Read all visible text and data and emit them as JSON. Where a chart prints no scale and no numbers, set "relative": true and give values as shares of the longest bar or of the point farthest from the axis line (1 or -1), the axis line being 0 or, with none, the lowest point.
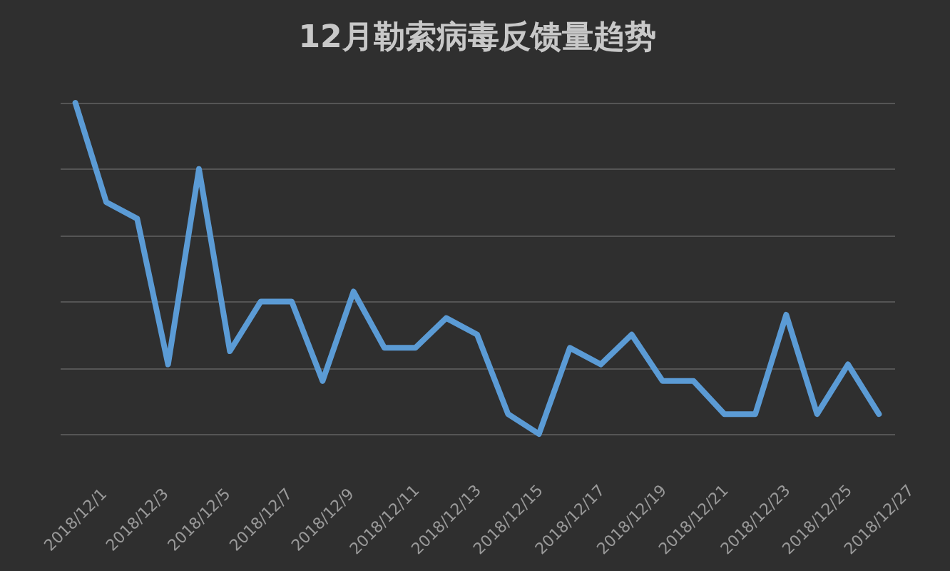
{
  "chart_data": {
    "type": "line",
    "title": "12月勒索病毒反馈量趋势",
    "relative": true,
    "grid": "y",
    "marker": "none",
    "line_style": "solid",
    "categories": [
      "2018/12/1",
      null,
      "2018/12/3",
      null,
      "2018/12/5",
      null,
      "2018/12/7",
      null,
      "2018/12/9",
      null,
      "2018/12/11",
      null,
      "2018/12/13",
      null,
      "2018/12/15",
      null,
      "2018/12/17",
      null,
      "2018/12/19",
      null,
      "2018/12/21",
      null,
      "2018/12/23",
      null,
      "2018/12/25",
      null,
      "2018/12/27"
    ],
    "series": [
      {
        "color": "#5b9bd5",
        "values": [
          1,
          0.7,
          0.65,
          0.21,
          0.8,
          0.25,
          0.4,
          0.4,
          0.16,
          0.43,
          0.26,
          0.26,
          0.35,
          0.3,
          0.06,
          0,
          0.26,
          0.21,
          0.3,
          0.16,
          0.16,
          0.06,
          0.06,
          0.36,
          0.06,
          0.21,
          0.06
        ]
      }
    ]
  }
}
